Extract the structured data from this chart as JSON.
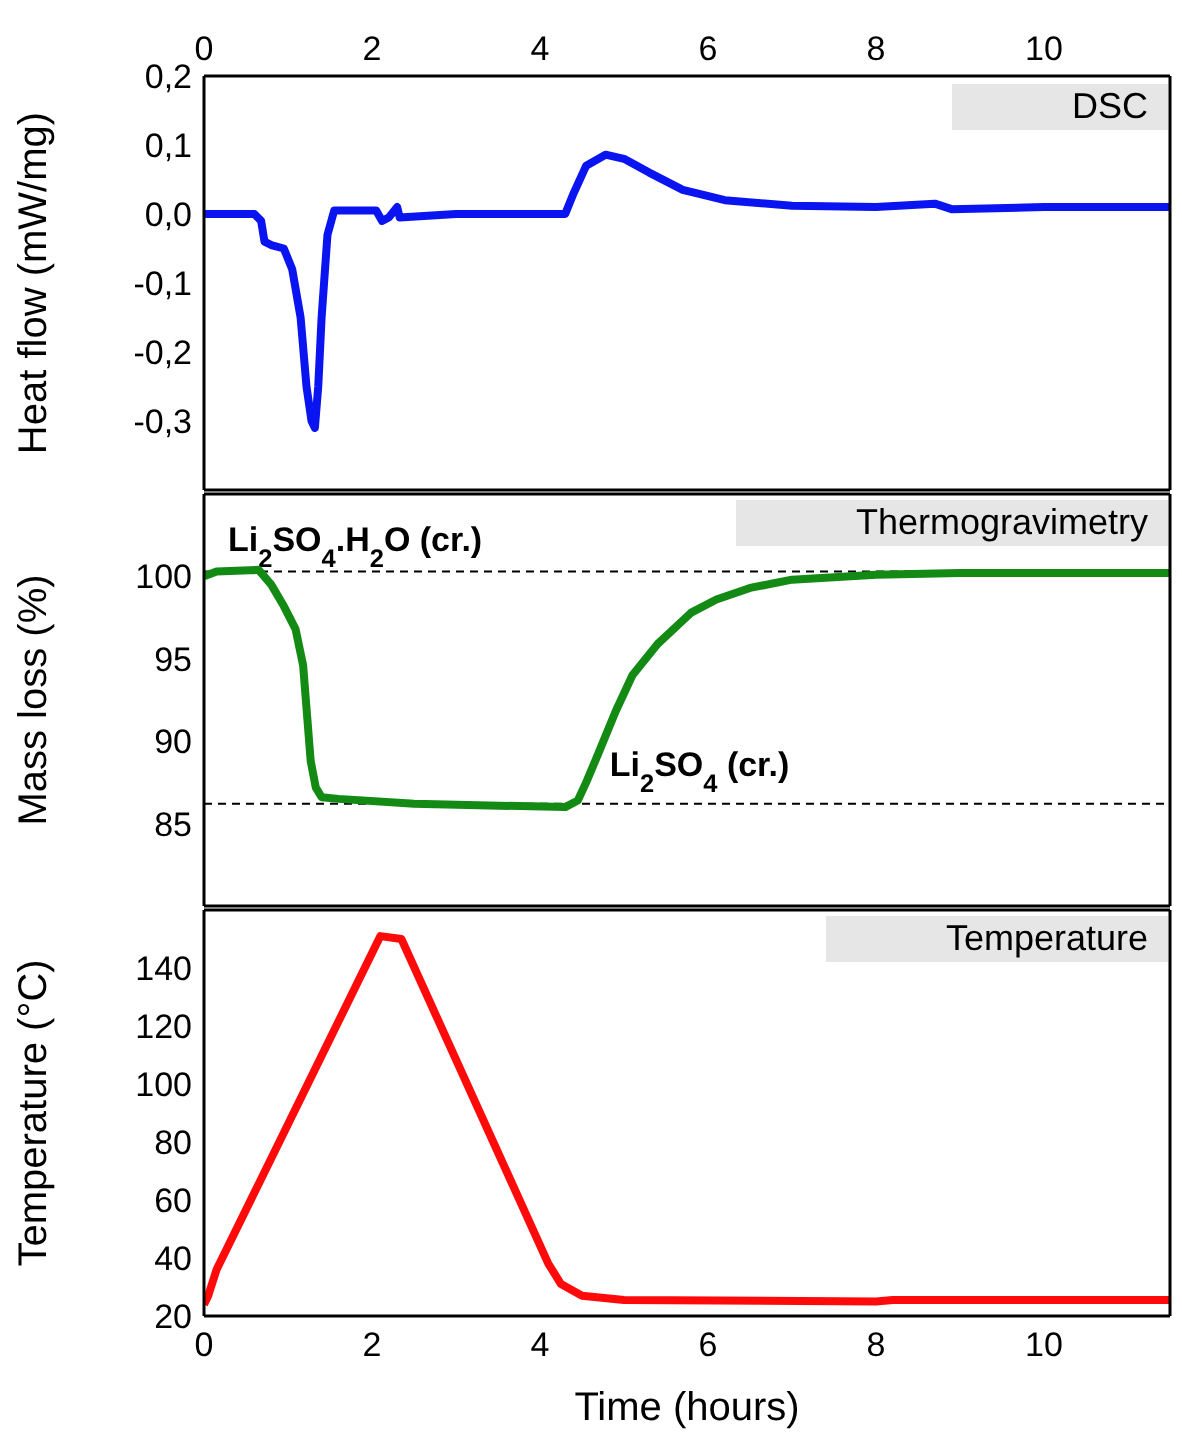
{
  "chart_data": [
    {
      "type": "line",
      "ylabel": "Heat flow (mW/mg)",
      "annotations": [
        "DSC"
      ],
      "tick_labels": "y",
      "xlim": [
        0,
        11.5
      ],
      "x2lim": [
        0,
        11.5
      ],
      "x2ticks": [
        0,
        2,
        4,
        6,
        8,
        10
      ],
      "ylim": [
        -0.4,
        0.2
      ],
      "yticks": [
        {
          "value": -0.3,
          "label": "-0,3"
        },
        {
          "value": -0.2,
          "label": "-0,2"
        },
        {
          "value": -0.1,
          "label": "-0,1"
        },
        {
          "value": 0,
          "label": "0,0"
        },
        {
          "value": 0.1,
          "label": "0,1"
        },
        {
          "value": 0.2,
          "label": "0,2"
        }
      ],
      "x": [
        0,
        0.6,
        0.68,
        0.72,
        0.8,
        0.95,
        1.05,
        1.15,
        1.22,
        1.28,
        1.32,
        1.36,
        1.4,
        1.47,
        1.55,
        2.05,
        2.12,
        2.2,
        2.3,
        2.33,
        3,
        4.3,
        4.4,
        4.55,
        4.78,
        5.0,
        5.3,
        5.7,
        6.2,
        7,
        8,
        8.7,
        8.9,
        10,
        11.5
      ],
      "series": [
        {
          "color": "#0a14f0",
          "values": [
            0,
            0,
            -0.01,
            -0.04,
            -0.045,
            -0.05,
            -0.08,
            -0.15,
            -0.25,
            -0.3,
            -0.31,
            -0.25,
            -0.15,
            -0.03,
            0.005,
            0.005,
            -0.01,
            -0.005,
            0.01,
            -0.005,
            0,
            0,
            0.03,
            0.07,
            0.086,
            0.08,
            0.06,
            0.035,
            0.02,
            0.012,
            0.01,
            0.015,
            0.007,
            0.01,
            0.01
          ]
        }
      ]
    },
    {
      "type": "line",
      "ylabel": "Mass loss (%)",
      "annotations": [
        "Thermogravimetry"
      ],
      "tick_labels": "y",
      "xlim": [
        0,
        11.5
      ],
      "ylim": [
        80,
        105
      ],
      "yticks": [
        85,
        90,
        95,
        100
      ],
      "ref_lines": [
        {
          "axis": "y",
          "value": 100.3,
          "label": "Li$_{2}$SO$_{4}$.H$_{2}$O (cr.)",
          "line_style": "dashed",
          "color": "#000000"
        },
        {
          "axis": "y",
          "value": 86.2,
          "label": "Li$_{2}$SO$_{4}$ (cr.)",
          "line_style": "dashed",
          "color": "#000000"
        }
      ],
      "x": [
        0,
        0.15,
        0.65,
        0.8,
        0.95,
        1.09,
        1.18,
        1.27,
        1.33,
        1.4,
        1.6,
        2.5,
        4.3,
        4.45,
        4.55,
        4.69,
        4.9,
        5.1,
        5.4,
        5.8,
        6.1,
        6.5,
        7,
        8,
        9,
        11.5
      ],
      "series": [
        {
          "color": "#138a13",
          "values": [
            100,
            100.3,
            100.4,
            99.5,
            98.2,
            96.8,
            94.6,
            88.8,
            87.2,
            86.6,
            86.5,
            86.2,
            86.0,
            86.4,
            87.5,
            89.2,
            91.8,
            94,
            95.9,
            97.8,
            98.6,
            99.3,
            99.8,
            100.1,
            100.2,
            100.2
          ]
        }
      ]
    },
    {
      "type": "line",
      "ylabel": "Temperature (°C)",
      "xlabel": "Time (hours)",
      "annotations": [
        "Temperature"
      ],
      "xlim": [
        0,
        11.5
      ],
      "xticks": [
        0,
        2,
        4,
        6,
        8,
        10
      ],
      "ylim": [
        20,
        160
      ],
      "yticks": [
        20,
        40,
        60,
        80,
        100,
        120,
        140
      ],
      "x": [
        0,
        0.05,
        0.15,
        2.1,
        2.35,
        4.1,
        4.25,
        4.5,
        5,
        8,
        8.2,
        11.5
      ],
      "series": [
        {
          "color": "#ff0a0a",
          "values": [
            24,
            27,
            36,
            151,
            150,
            38,
            31,
            27,
            25.5,
            25,
            25.5,
            25.5
          ]
        }
      ]
    }
  ]
}
